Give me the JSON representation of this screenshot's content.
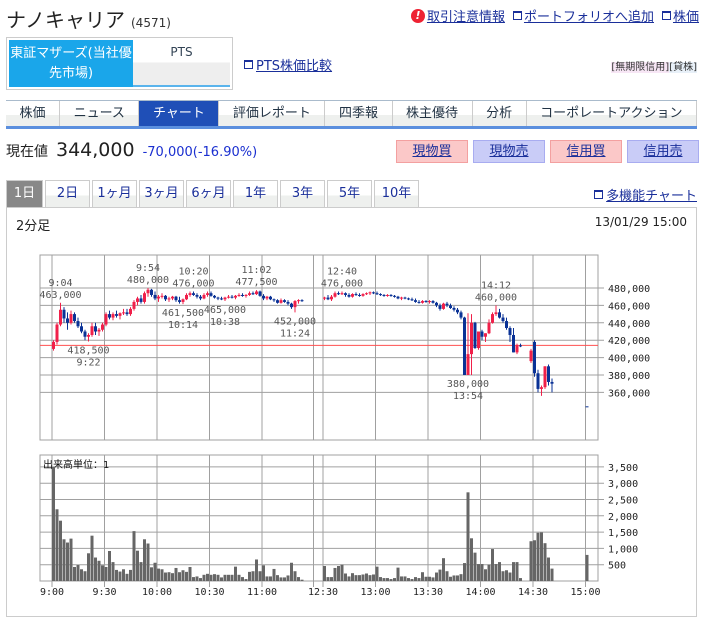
{
  "header": {
    "title": "ナノキャリア",
    "code": "(4571)",
    "links": [
      {
        "icon": "warning-icon",
        "label": "取引注意情報"
      },
      {
        "icon": "portfolio-icon",
        "label": "ポートフォリオへ追加"
      },
      {
        "icon": "window-icon",
        "label": "株価"
      }
    ]
  },
  "market": {
    "tse": "東証マザーズ(当社優先市場)",
    "pts": "PTS",
    "pts_compare": "PTS株価比較",
    "credit": [
      "[無期限信用]",
      "[貸株]"
    ]
  },
  "nav": {
    "active": 2,
    "tabs": [
      "株価",
      "ニュース",
      "チャート",
      "評価レポート",
      "四季報",
      "株主優待",
      "分析",
      "コーポレートアクション"
    ]
  },
  "quote": {
    "label": "現在値",
    "price": "344,000",
    "change": "-70,000",
    "change_pct": "(-16.90%)"
  },
  "trade": [
    {
      "label": "現物買",
      "side": "buy"
    },
    {
      "label": "現物売",
      "side": "sell"
    },
    {
      "label": "信用買",
      "side": "buy"
    },
    {
      "label": "信用売",
      "side": "sell"
    }
  ],
  "periods": {
    "active": 0,
    "tabs": [
      "1日",
      "2日",
      "1ヶ月",
      "3ヶ月",
      "6ヶ月",
      "1年",
      "3年",
      "5年",
      "10年"
    ]
  },
  "multi_chart": "多機能チャート",
  "colors": {
    "up": "#f0204a",
    "down": "#0a3296",
    "prev_close_line": "#ff5050",
    "volume": "#666666",
    "grid": "#a0a0a0"
  },
  "chart_data": {
    "type": "candlestick",
    "interval": "2分足",
    "datetime": "13/01/29 15:00",
    "prev_close": 414000,
    "price_ticks": [
      "480,000",
      "460,000",
      "440,000",
      "420,000",
      "400,000",
      "380,000",
      "360,000"
    ],
    "price_tick_values": [
      480000,
      460000,
      440000,
      420000,
      400000,
      380000,
      360000
    ],
    "volume_label": "出来高単位：1",
    "volume_ticks": [
      "3,500",
      "3,000",
      "2,500",
      "2,000",
      "1,500",
      "1,000",
      "500"
    ],
    "volume_tick_values": [
      3500,
      3000,
      2500,
      2000,
      1500,
      1000,
      500
    ],
    "time_ticks": [
      "9:00",
      "9:30",
      "10:00",
      "10:30",
      "11:00",
      "12:30",
      "13:00",
      "13:30",
      "14:00",
      "14:30",
      "15:00"
    ],
    "annotations": [
      {
        "time": "9:04",
        "price": 463000,
        "text": "463,000",
        "kind": "high"
      },
      {
        "time": "9:20",
        "price": 418500,
        "text": "418,500",
        "label_time": "9:22",
        "kind": "low"
      },
      {
        "time": "9:54",
        "price": 480000,
        "text": "480,000",
        "kind": "high"
      },
      {
        "time": "10:14",
        "price": 461500,
        "text": "461,500",
        "kind": "low"
      },
      {
        "time": "10:20",
        "price": 476000,
        "text": "476,000",
        "kind": "high"
      },
      {
        "time": "10:38",
        "price": 465000,
        "text": "465,000",
        "kind": "low"
      },
      {
        "time": "10:56",
        "price": 477500,
        "text": "477,500",
        "label_time": "11:02",
        "kind": "high"
      },
      {
        "time": "11:18",
        "price": 452000,
        "text": "452,000",
        "label_time": "11:24",
        "kind": "low"
      },
      {
        "time": "12:40",
        "price": 476000,
        "text": "476,000",
        "kind": "high"
      },
      {
        "time": "13:52",
        "price": 380000,
        "text": "380,000",
        "label_time": "13:54",
        "kind": "low"
      },
      {
        "time": "14:08",
        "price": 460000,
        "text": "460,000",
        "label_time": "14:12",
        "kind": "high"
      }
    ],
    "candles": [
      [
        "9:00",
        410000,
        420000,
        408000,
        418000,
        3500
      ],
      [
        "9:02",
        418000,
        440000,
        415000,
        438000,
        2200
      ],
      [
        "9:04",
        438000,
        463000,
        436000,
        455000,
        1850
      ],
      [
        "9:06",
        455000,
        458000,
        440000,
        445000,
        1280
      ],
      [
        "9:08",
        445000,
        452000,
        432000,
        440000,
        1180
      ],
      [
        "9:10",
        440000,
        454000,
        438000,
        450000,
        1300
      ],
      [
        "9:12",
        450000,
        452000,
        440000,
        442000,
        430
      ],
      [
        "9:14",
        442000,
        446000,
        434000,
        436000,
        490
      ],
      [
        "9:16",
        436000,
        440000,
        428000,
        430000,
        360
      ],
      [
        "9:18",
        430000,
        432000,
        420000,
        424000,
        300
      ],
      [
        "9:20",
        424000,
        428000,
        418500,
        426000,
        850
      ],
      [
        "9:22",
        426000,
        440000,
        424000,
        436000,
        1390
      ],
      [
        "9:24",
        436000,
        440000,
        426000,
        430000,
        720
      ],
      [
        "9:26",
        430000,
        434000,
        425000,
        432000,
        620
      ],
      [
        "9:28",
        432000,
        440000,
        430000,
        438000,
        480
      ],
      [
        "9:30",
        438000,
        452000,
        436000,
        450000,
        430
      ],
      [
        "9:32",
        450000,
        454000,
        444000,
        446000,
        920
      ],
      [
        "9:34",
        446000,
        452000,
        443000,
        450000,
        580
      ],
      [
        "9:36",
        450000,
        454000,
        446000,
        448000,
        340
      ],
      [
        "9:38",
        448000,
        452000,
        444000,
        451000,
        290
      ],
      [
        "9:40",
        451000,
        456000,
        449000,
        452000,
        360
      ],
      [
        "9:42",
        452000,
        456000,
        448000,
        450000,
        220
      ],
      [
        "9:44",
        450000,
        458000,
        448000,
        456000,
        340
      ],
      [
        "9:46",
        456000,
        466000,
        454000,
        464000,
        1530
      ],
      [
        "9:48",
        464000,
        470000,
        460000,
        468000,
        930
      ],
      [
        "9:50",
        468000,
        472000,
        462000,
        464000,
        580
      ],
      [
        "9:52",
        464000,
        476000,
        462000,
        474000,
        1280
      ],
      [
        "9:54",
        474000,
        480000,
        470000,
        478000,
        1150
      ],
      [
        "9:56",
        478000,
        479000,
        470000,
        472000,
        420
      ],
      [
        "9:58",
        472000,
        476000,
        466000,
        468000,
        560
      ],
      [
        "10:00",
        468000,
        472000,
        464000,
        470000,
        380
      ],
      [
        "10:02",
        470000,
        474000,
        468000,
        471000,
        360
      ],
      [
        "10:04",
        471000,
        472000,
        465000,
        467000,
        260
      ],
      [
        "10:06",
        467000,
        470000,
        464000,
        468000,
        270
      ],
      [
        "10:08",
        468000,
        471000,
        466000,
        470000,
        240
      ],
      [
        "10:10",
        470000,
        471000,
        464000,
        466000,
        400
      ],
      [
        "10:12",
        466000,
        470000,
        462000,
        464000,
        270
      ],
      [
        "10:14",
        464000,
        468000,
        461500,
        467000,
        330
      ],
      [
        "10:16",
        467000,
        474000,
        466000,
        472000,
        280
      ],
      [
        "10:18",
        472000,
        476000,
        470000,
        474000,
        430
      ],
      [
        "10:20",
        474000,
        476000,
        471000,
        472000,
        120
      ],
      [
        "10:22",
        472000,
        474000,
        468000,
        470000,
        140
      ],
      [
        "10:24",
        470000,
        472000,
        466000,
        468000,
        90
      ],
      [
        "10:26",
        468000,
        474000,
        467000,
        472000,
        190
      ],
      [
        "10:28",
        472000,
        476000,
        470000,
        474000,
        220
      ],
      [
        "10:30",
        474000,
        476000,
        470000,
        471000,
        190
      ],
      [
        "10:32",
        471000,
        472000,
        468000,
        469000,
        210
      ],
      [
        "10:34",
        469000,
        470000,
        466000,
        468000,
        190
      ],
      [
        "10:36",
        468000,
        470000,
        466000,
        467000,
        110
      ],
      [
        "10:38",
        467000,
        470000,
        465000,
        469000,
        190
      ],
      [
        "10:40",
        469000,
        472000,
        468000,
        470000,
        190
      ],
      [
        "10:42",
        470000,
        472000,
        468000,
        469000,
        190
      ],
      [
        "10:44",
        469000,
        472000,
        467000,
        471000,
        440
      ],
      [
        "10:46",
        471000,
        474000,
        470000,
        472000,
        190
      ],
      [
        "10:48",
        472000,
        474000,
        470000,
        471000,
        120
      ],
      [
        "10:50",
        471000,
        473000,
        469000,
        472000,
        60
      ],
      [
        "10:52",
        472000,
        476000,
        471000,
        474000,
        280
      ],
      [
        "10:54",
        474000,
        476000,
        472000,
        473000,
        300
      ],
      [
        "10:56",
        473000,
        477500,
        472000,
        476000,
        660
      ],
      [
        "10:58",
        476000,
        477000,
        470000,
        471000,
        300
      ],
      [
        "11:00",
        471000,
        473000,
        466000,
        468000,
        480
      ],
      [
        "11:02",
        468000,
        471000,
        466000,
        470000,
        140
      ],
      [
        "11:04",
        470000,
        471000,
        466000,
        467000,
        140
      ],
      [
        "11:06",
        467000,
        468000,
        464000,
        466000,
        370
      ],
      [
        "11:08",
        466000,
        467000,
        462000,
        463000,
        180
      ],
      [
        "11:10",
        463000,
        468000,
        462000,
        466000,
        110
      ],
      [
        "11:12",
        466000,
        467000,
        463000,
        464000,
        110
      ],
      [
        "11:14",
        464000,
        466000,
        460000,
        462000,
        170
      ],
      [
        "11:16",
        462000,
        463000,
        456000,
        458000,
        560
      ],
      [
        "11:18",
        458000,
        466000,
        452000,
        465000,
        300
      ],
      [
        "11:20",
        465000,
        467000,
        462000,
        466000,
        120
      ],
      [
        "11:22",
        466000,
        467000,
        464000,
        466000,
        40
      ],
      [
        "12:30",
        468000,
        470000,
        466000,
        469000,
        460
      ],
      [
        "12:32",
        469000,
        472000,
        466000,
        467000,
        120
      ],
      [
        "12:34",
        467000,
        472000,
        465000,
        470000,
        120
      ],
      [
        "12:36",
        470000,
        476000,
        469000,
        474000,
        400
      ],
      [
        "12:38",
        474000,
        476000,
        472000,
        473000,
        460
      ],
      [
        "12:40",
        473000,
        476000,
        472000,
        474000,
        500
      ],
      [
        "12:42",
        474000,
        475000,
        470000,
        472000,
        230
      ],
      [
        "12:44",
        472000,
        474000,
        469000,
        470000,
        140
      ],
      [
        "12:46",
        470000,
        474000,
        469000,
        473000,
        240
      ],
      [
        "12:48",
        473000,
        475000,
        471000,
        472000,
        180
      ],
      [
        "12:50",
        472000,
        474000,
        470000,
        471000,
        180
      ],
      [
        "12:52",
        471000,
        474000,
        470000,
        473000,
        200
      ],
      [
        "12:54",
        473000,
        475000,
        472000,
        474000,
        230
      ],
      [
        "12:56",
        474000,
        476000,
        472000,
        475000,
        180
      ],
      [
        "12:58",
        475000,
        476000,
        473000,
        474000,
        200
      ],
      [
        "13:00",
        474000,
        476000,
        472000,
        473000,
        440
      ],
      [
        "13:02",
        473000,
        474000,
        471000,
        472000,
        120
      ],
      [
        "13:04",
        472000,
        473000,
        470000,
        471000,
        90
      ],
      [
        "13:06",
        471000,
        473000,
        470000,
        472000,
        90
      ],
      [
        "13:08",
        472000,
        473000,
        470000,
        471000,
        60
      ],
      [
        "13:10",
        471000,
        472000,
        469000,
        470000,
        90
      ],
      [
        "13:12",
        470000,
        471000,
        467000,
        468000,
        410
      ],
      [
        "13:14",
        468000,
        470000,
        466000,
        469000,
        140
      ],
      [
        "13:16",
        469000,
        470000,
        467000,
        468000,
        140
      ],
      [
        "13:18",
        468000,
        469000,
        466000,
        467000,
        90
      ],
      [
        "13:20",
        467000,
        469000,
        465000,
        466000,
        60
      ],
      [
        "13:22",
        466000,
        468000,
        463000,
        464000,
        120
      ],
      [
        "13:24",
        464000,
        466000,
        462000,
        463000,
        90
      ],
      [
        "13:26",
        463000,
        466000,
        462000,
        465000,
        270
      ],
      [
        "13:28",
        465000,
        466000,
        463000,
        464000,
        130
      ],
      [
        "13:30",
        464000,
        466000,
        462000,
        465000,
        130
      ],
      [
        "13:32",
        465000,
        466000,
        462000,
        463000,
        110
      ],
      [
        "13:34",
        463000,
        464000,
        458000,
        460000,
        260
      ],
      [
        "13:36",
        460000,
        462000,
        454000,
        456000,
        350
      ],
      [
        "13:38",
        456000,
        463000,
        455000,
        462000,
        700
      ],
      [
        "13:40",
        462000,
        464000,
        458000,
        460000,
        300
      ],
      [
        "13:42",
        460000,
        462000,
        456000,
        457000,
        130
      ],
      [
        "13:44",
        457000,
        459000,
        453000,
        455000,
        170
      ],
      [
        "13:46",
        455000,
        457000,
        450000,
        452000,
        170
      ],
      [
        "13:48",
        452000,
        454000,
        444000,
        446000,
        210
      ],
      [
        "13:50",
        446000,
        447000,
        380000,
        380000,
        550
      ],
      [
        "13:52",
        380000,
        451000,
        380000,
        404000,
        2720
      ],
      [
        "13:54",
        404000,
        450000,
        380000,
        440000,
        1310
      ],
      [
        "13:56",
        440000,
        441000,
        410000,
        411000,
        870
      ],
      [
        "13:58",
        411000,
        430000,
        409000,
        430000,
        520
      ],
      [
        "14:00",
        430000,
        432000,
        420000,
        424000,
        520
      ],
      [
        "14:02",
        424000,
        428000,
        418000,
        428000,
        360
      ],
      [
        "14:04",
        428000,
        444000,
        427000,
        440000,
        500
      ],
      [
        "14:06",
        440000,
        452000,
        439000,
        450000,
        980
      ],
      [
        "14:08",
        450000,
        460000,
        448000,
        452000,
        520
      ],
      [
        "14:10",
        452000,
        456000,
        445000,
        446000,
        580
      ],
      [
        "14:12",
        446000,
        450000,
        440000,
        442000,
        300
      ],
      [
        "14:14",
        442000,
        446000,
        432000,
        434000,
        330
      ],
      [
        "14:16",
        434000,
        436000,
        418000,
        426000,
        260
      ],
      [
        "14:18",
        426000,
        434000,
        406000,
        406000,
        580
      ],
      [
        "14:20",
        406000,
        416000,
        404000,
        414000,
        580
      ],
      [
        "14:22",
        414000,
        416000,
        412000,
        414000,
        90
      ],
      [
        "14:28",
        396000,
        410000,
        394000,
        408000,
        1220
      ],
      [
        "14:30",
        418000,
        420000,
        378000,
        382000,
        1250
      ],
      [
        "14:32",
        382000,
        386000,
        360000,
        364000,
        1480
      ],
      [
        "14:34",
        364000,
        368000,
        356000,
        366000,
        1490
      ],
      [
        "14:36",
        366000,
        390000,
        364000,
        390000,
        1160
      ],
      [
        "14:38",
        390000,
        392000,
        368000,
        372000,
        720
      ],
      [
        "14:40",
        372000,
        376000,
        360000,
        370000,
        380
      ],
      [
        "15:00",
        344000,
        344000,
        344000,
        344000,
        800
      ]
    ]
  }
}
